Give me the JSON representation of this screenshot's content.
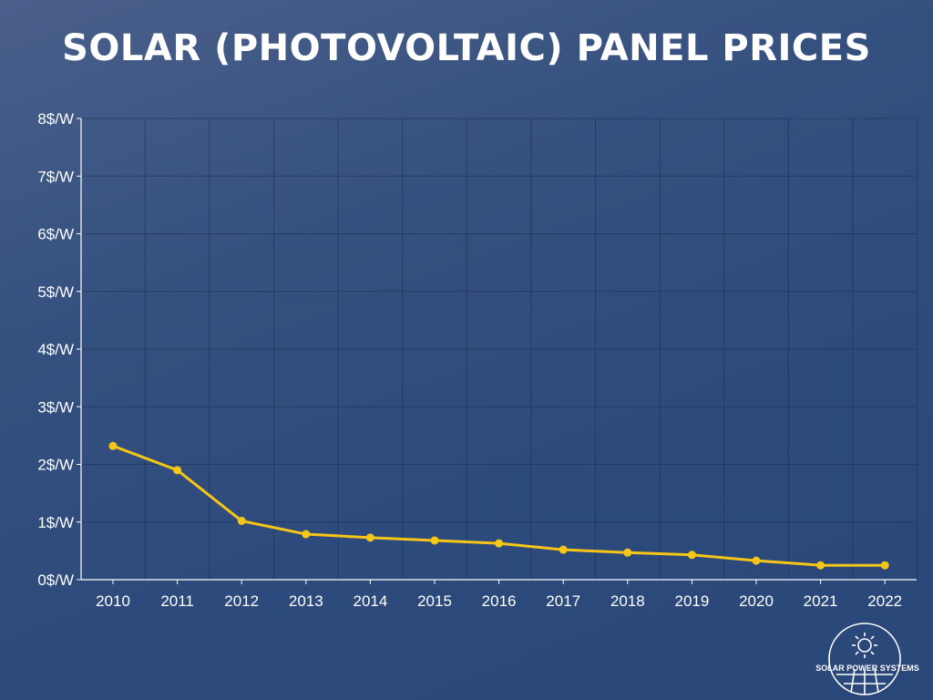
{
  "title": "SOLAR (PHOTOVOLTAIC) PANEL PRICES",
  "logo_text": "SOLAR POWER SYSTEMS",
  "chart_data": {
    "type": "line",
    "title": "SOLAR (PHOTOVOLTAIC) PANEL PRICES",
    "xlabel": "",
    "ylabel": "",
    "categories": [
      "2010",
      "2011",
      "2012",
      "2013",
      "2014",
      "2015",
      "2016",
      "2017",
      "2018",
      "2019",
      "2020",
      "2021",
      "2022"
    ],
    "values": [
      2.32,
      1.9,
      1.02,
      0.79,
      0.73,
      0.68,
      0.63,
      0.52,
      0.47,
      0.43,
      0.33,
      0.25,
      0.25
    ],
    "ylim": [
      0,
      8
    ],
    "yticks": [
      "0$/W",
      "1$/W",
      "2$/W",
      "3$/W",
      "4$/W",
      "5$/W",
      "6$/W",
      "7$/W",
      "8$/W"
    ],
    "grid": true,
    "line_color": "#f5c518"
  }
}
